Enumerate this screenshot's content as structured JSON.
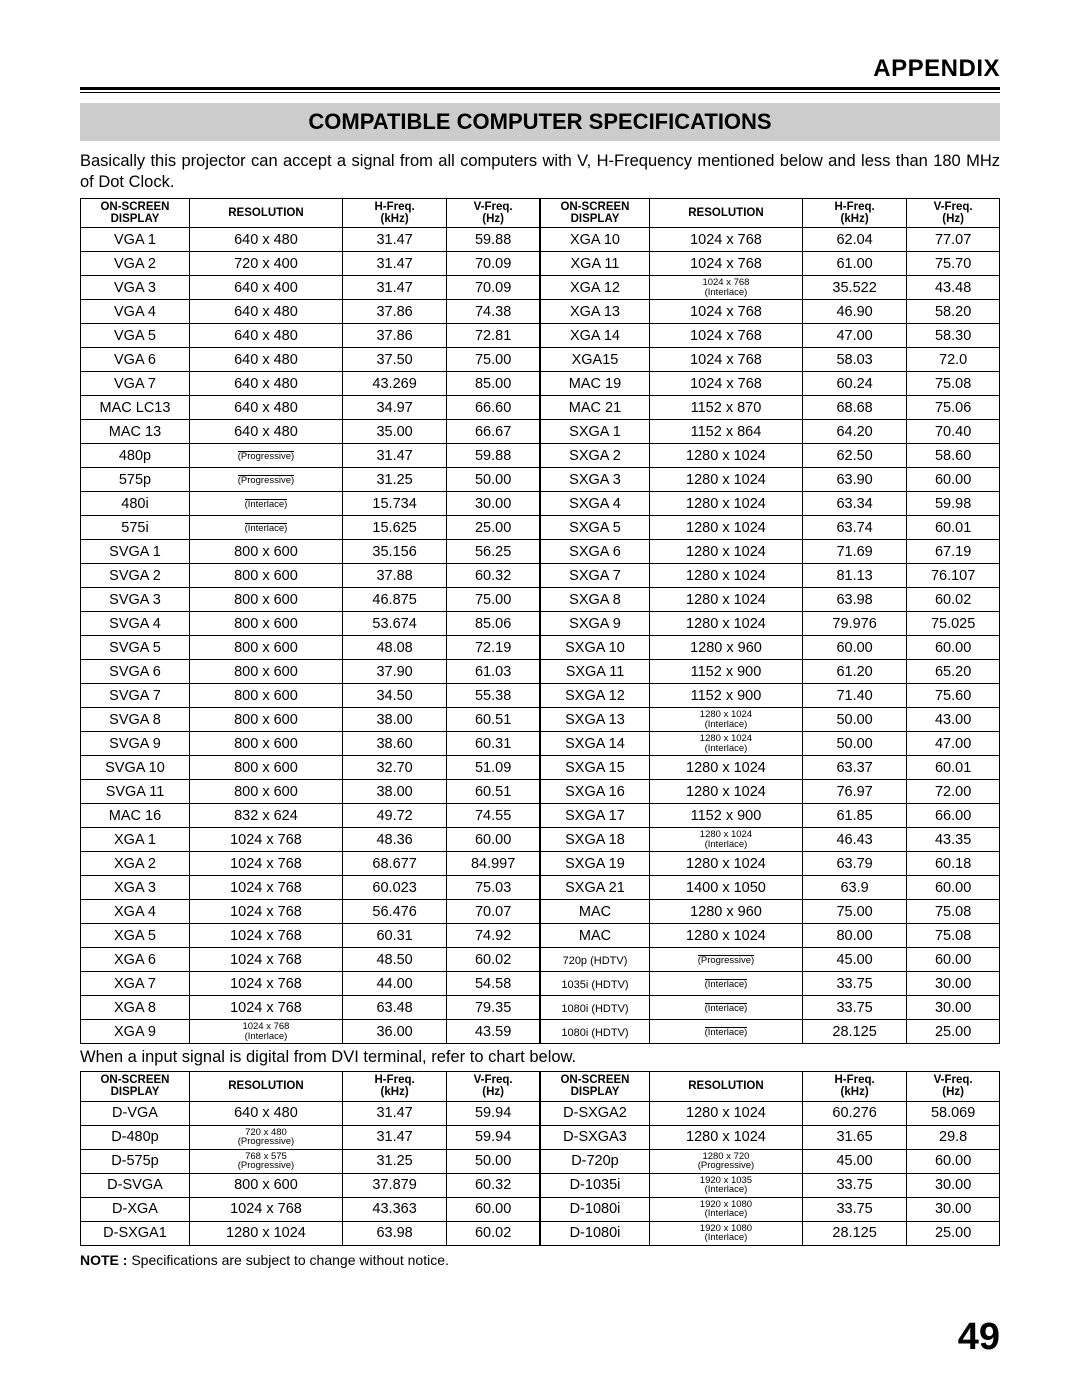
{
  "appendix_label": "APPENDIX",
  "banner_title": "COMPATIBLE COMPUTER SPECIFICATIONS",
  "intro_text": "Basically this projector can accept a signal from all computers with V, H-Frequency mentioned below and less than 180 MHz of Dot Clock.",
  "headers": {
    "display_l1": "ON-SCREEN",
    "display_l2": "DISPLAY",
    "resolution": "RESOLUTION",
    "hfreq_l1": "H-Freq.",
    "hfreq_l2": "(kHz)",
    "vfreq_l1": "V-Freq.",
    "vfreq_l2": "(Hz)"
  },
  "left1": [
    {
      "d": "VGA 1",
      "r": "640 x 480",
      "h": "31.47",
      "v": "59.88"
    },
    {
      "d": "VGA 2",
      "r": "720 x 400",
      "h": "31.47",
      "v": "70.09"
    },
    {
      "d": "VGA 3",
      "r": "640 x 400",
      "h": "31.47",
      "v": "70.09"
    },
    {
      "d": "VGA 4",
      "r": "640 x 480",
      "h": "37.86",
      "v": "74.38"
    },
    {
      "d": "VGA 5",
      "r": "640 x 480",
      "h": "37.86",
      "v": "72.81"
    },
    {
      "d": "VGA 6",
      "r": "640 x 480",
      "h": "37.50",
      "v": "75.00"
    },
    {
      "d": "VGA 7",
      "r": "640 x 480",
      "h": "43.269",
      "v": "85.00"
    },
    {
      "d": "MAC LC13",
      "r": "640 x 480",
      "h": "34.97",
      "v": "66.60"
    },
    {
      "d": "MAC 13",
      "r": "640 x 480",
      "h": "35.00",
      "v": "66.67"
    },
    {
      "d": "480p",
      "r": "",
      "mode": "(Progressive)",
      "h": "31.47",
      "v": "59.88"
    },
    {
      "d": "575p",
      "r": "",
      "mode": "(Progressive)",
      "h": "31.25",
      "v": "50.00"
    },
    {
      "d": "480i",
      "r": "",
      "mode": "(Interlace)",
      "h": "15.734",
      "v": "30.00"
    },
    {
      "d": "575i",
      "r": "",
      "mode": "(Interlace)",
      "h": "15.625",
      "v": "25.00"
    },
    {
      "d": "SVGA 1",
      "r": "800 x 600",
      "h": "35.156",
      "v": "56.25"
    },
    {
      "d": "SVGA 2",
      "r": "800 x 600",
      "h": "37.88",
      "v": "60.32"
    },
    {
      "d": "SVGA 3",
      "r": "800 x 600",
      "h": "46.875",
      "v": "75.00"
    },
    {
      "d": "SVGA 4",
      "r": "800 x 600",
      "h": "53.674",
      "v": "85.06"
    },
    {
      "d": "SVGA 5",
      "r": "800 x 600",
      "h": "48.08",
      "v": "72.19"
    },
    {
      "d": "SVGA 6",
      "r": "800 x 600",
      "h": "37.90",
      "v": "61.03"
    },
    {
      "d": "SVGA 7",
      "r": "800 x 600",
      "h": "34.50",
      "v": "55.38"
    },
    {
      "d": "SVGA 8",
      "r": "800 x 600",
      "h": "38.00",
      "v": "60.51"
    },
    {
      "d": "SVGA 9",
      "r": "800 x 600",
      "h": "38.60",
      "v": "60.31"
    },
    {
      "d": "SVGA 10",
      "r": "800 x 600",
      "h": "32.70",
      "v": "51.09"
    },
    {
      "d": "SVGA 11",
      "r": "800 x 600",
      "h": "38.00",
      "v": "60.51"
    },
    {
      "d": "MAC 16",
      "r": "832 x 624",
      "h": "49.72",
      "v": "74.55"
    },
    {
      "d": "XGA 1",
      "r": "1024 x 768",
      "h": "48.36",
      "v": "60.00"
    },
    {
      "d": "XGA 2",
      "r": "1024 x 768",
      "h": "68.677",
      "v": "84.997"
    },
    {
      "d": "XGA 3",
      "r": "1024 x 768",
      "h": "60.023",
      "v": "75.03"
    },
    {
      "d": "XGA 4",
      "r": "1024 x 768",
      "h": "56.476",
      "v": "70.07"
    },
    {
      "d": "XGA 5",
      "r": "1024 x 768",
      "h": "60.31",
      "v": "74.92"
    },
    {
      "d": "XGA 6",
      "r": "1024 x 768",
      "h": "48.50",
      "v": "60.02"
    },
    {
      "d": "XGA 7",
      "r": "1024 x 768",
      "h": "44.00",
      "v": "54.58"
    },
    {
      "d": "XGA 8",
      "r": "1024 x 768",
      "h": "63.48",
      "v": "79.35"
    },
    {
      "d": "XGA 9",
      "r": "1024 x 768",
      "mode": "(Interlace)",
      "small": true,
      "h": "36.00",
      "v": "43.59"
    }
  ],
  "right1": [
    {
      "d": "XGA 10",
      "r": "1024 x 768",
      "h": "62.04",
      "v": "77.07"
    },
    {
      "d": "XGA 11",
      "r": "1024 x 768",
      "h": "61.00",
      "v": "75.70"
    },
    {
      "d": "XGA 12",
      "r": "1024 x 768",
      "mode": "(Interlace)",
      "small": true,
      "h": "35.522",
      "v": "43.48"
    },
    {
      "d": "XGA 13",
      "r": "1024 x 768",
      "h": "46.90",
      "v": "58.20"
    },
    {
      "d": "XGA 14",
      "r": "1024 x 768",
      "h": "47.00",
      "v": "58.30"
    },
    {
      "d": "XGA15",
      "r": "1024 x 768",
      "h": "58.03",
      "v": "72.0"
    },
    {
      "d": "MAC 19",
      "r": "1024 x 768",
      "h": "60.24",
      "v": "75.08"
    },
    {
      "d": "MAC 21",
      "r": "1152 x 870",
      "h": "68.68",
      "v": "75.06"
    },
    {
      "d": "SXGA 1",
      "r": "1152 x 864",
      "h": "64.20",
      "v": "70.40"
    },
    {
      "d": "SXGA 2",
      "r": "1280 x 1024",
      "h": "62.50",
      "v": "58.60"
    },
    {
      "d": "SXGA 3",
      "r": "1280 x 1024",
      "h": "63.90",
      "v": "60.00"
    },
    {
      "d": "SXGA 4",
      "r": "1280 x 1024",
      "h": "63.34",
      "v": "59.98"
    },
    {
      "d": "SXGA 5",
      "r": "1280 x 1024",
      "h": "63.74",
      "v": "60.01"
    },
    {
      "d": "SXGA 6",
      "r": "1280 x 1024",
      "h": "71.69",
      "v": "67.19"
    },
    {
      "d": "SXGA 7",
      "r": "1280 x 1024",
      "h": "81.13",
      "v": "76.107"
    },
    {
      "d": "SXGA 8",
      "r": "1280 x 1024",
      "h": "63.98",
      "v": "60.02"
    },
    {
      "d": "SXGA 9",
      "r": "1280 x 1024",
      "h": "79.976",
      "v": "75.025"
    },
    {
      "d": "SXGA 10",
      "r": "1280 x 960",
      "h": "60.00",
      "v": "60.00"
    },
    {
      "d": "SXGA 11",
      "r": "1152 x 900",
      "h": "61.20",
      "v": "65.20"
    },
    {
      "d": "SXGA 12",
      "r": "1152 x 900",
      "h": "71.40",
      "v": "75.60"
    },
    {
      "d": "SXGA 13",
      "r": "1280 x 1024",
      "mode": "(Interlace)",
      "small": true,
      "h": "50.00",
      "v": "43.00"
    },
    {
      "d": "SXGA 14",
      "r": "1280 x 1024",
      "mode": "(Interlace)",
      "small": true,
      "h": "50.00",
      "v": "47.00"
    },
    {
      "d": "SXGA 15",
      "r": "1280 x 1024",
      "h": "63.37",
      "v": "60.01"
    },
    {
      "d": "SXGA 16",
      "r": "1280 x 1024",
      "h": "76.97",
      "v": "72.00"
    },
    {
      "d": "SXGA 17",
      "r": "1152 x 900",
      "h": "61.85",
      "v": "66.00"
    },
    {
      "d": "SXGA 18",
      "r": "1280 x 1024",
      "mode": "(Interlace)",
      "small": true,
      "h": "46.43",
      "v": "43.35"
    },
    {
      "d": "SXGA 19",
      "r": "1280 x 1024",
      "h": "63.79",
      "v": "60.18"
    },
    {
      "d": "SXGA 21",
      "r": "1400 x 1050",
      "h": "63.9",
      "v": "60.00"
    },
    {
      "d": "MAC",
      "r": "1280 x 960",
      "h": "75.00",
      "v": "75.08"
    },
    {
      "d": "MAC",
      "r": "1280 x 1024",
      "h": "80.00",
      "v": "75.08"
    },
    {
      "d": "720p (HDTV)",
      "dsmall": true,
      "r": "",
      "mode": "(Progressive)",
      "h": "45.00",
      "v": "60.00"
    },
    {
      "d": "1035i (HDTV)",
      "dsmall": true,
      "r": "",
      "mode": "(Interlace)",
      "h": "33.75",
      "v": "30.00"
    },
    {
      "d": "1080i (HDTV)",
      "dsmall": true,
      "r": "",
      "mode": "(Interlace)",
      "h": "33.75",
      "v": "30.00"
    },
    {
      "d": "1080i (HDTV)",
      "dsmall": true,
      "r": "",
      "mode": "(Interlace)",
      "h": "28.125",
      "v": "25.00"
    }
  ],
  "mid_note": "When a input signal is digital from DVI terminal, refer to chart below.",
  "left2": [
    {
      "d": "D-VGA",
      "r": "640 x 480",
      "h": "31.47",
      "v": "59.94"
    },
    {
      "d": "D-480p",
      "r": "720 x 480",
      "mode": "(Progressive)",
      "small": true,
      "h": "31.47",
      "v": "59.94"
    },
    {
      "d": "D-575p",
      "r": "768 x 575",
      "mode": "(Progressive)",
      "small": true,
      "h": "31.25",
      "v": "50.00"
    },
    {
      "d": "D-SVGA",
      "r": "800 x 600",
      "h": "37.879",
      "v": "60.32"
    },
    {
      "d": "D-XGA",
      "r": "1024 x 768",
      "h": "43.363",
      "v": "60.00"
    },
    {
      "d": "D-SXGA1",
      "r": "1280 x 1024",
      "h": "63.98",
      "v": "60.02"
    }
  ],
  "right2": [
    {
      "d": "D-SXGA2",
      "r": "1280 x 1024",
      "h": "60.276",
      "v": "58.069"
    },
    {
      "d": "D-SXGA3",
      "r": "1280 x 1024",
      "h": "31.65",
      "v": "29.8"
    },
    {
      "d": "D-720p",
      "r": "1280 x 720",
      "mode": "(Progressive)",
      "small": true,
      "h": "45.00",
      "v": "60.00"
    },
    {
      "d": "D-1035i",
      "r": "1920 x 1035",
      "mode": "(Interlace)",
      "small": true,
      "h": "33.75",
      "v": "30.00"
    },
    {
      "d": "D-1080i",
      "r": "1920 x 1080",
      "mode": "(Interlace)",
      "small": true,
      "h": "33.75",
      "v": "30.00"
    },
    {
      "d": "D-1080i",
      "r": "1920 x 1080",
      "mode": "(Interlace)",
      "small": true,
      "h": "28.125",
      "v": "25.00"
    }
  ],
  "footnote_label": "NOTE :",
  "footnote_text": " Specifications are subject to change without notice.",
  "page_number": "49"
}
